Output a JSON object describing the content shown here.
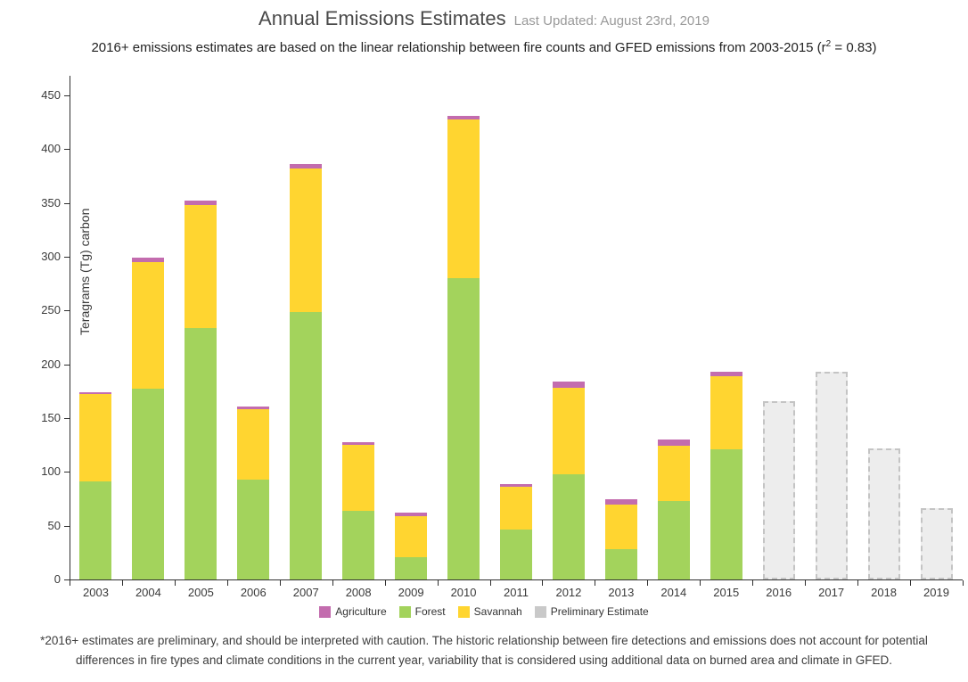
{
  "header": {
    "title": "Annual Emissions Estimates",
    "last_updated": "Last Updated: August 23rd, 2019",
    "subtitle_pre": "2016+ emissions estimates are based on the linear relationship between fire counts and GFED emissions from 2003-2015 (r",
    "subtitle_sup": "2",
    "subtitle_post": " = 0.83)"
  },
  "chart_data": {
    "type": "bar",
    "stacked": true,
    "title": "Annual Emissions Estimates",
    "ylabel": "Teragrams (Tg) carbon",
    "xlabel": "",
    "ylim": [
      0,
      450
    ],
    "ytick_step": 50,
    "grid": false,
    "legend_position": "bottom",
    "categories": [
      "2003",
      "2004",
      "2005",
      "2006",
      "2007",
      "2008",
      "2009",
      "2010",
      "2011",
      "2012",
      "2013",
      "2014",
      "2015",
      "2016",
      "2017",
      "2018",
      "2019"
    ],
    "series": [
      {
        "name": "Forest",
        "color": "#a3d35c",
        "values": [
          91,
          177,
          234,
          93,
          249,
          64,
          21,
          280,
          46,
          98,
          28,
          73,
          121,
          null,
          null,
          null,
          null
        ]
      },
      {
        "name": "Savannah",
        "color": "#ffd530",
        "values": [
          81,
          118,
          114,
          65,
          133,
          61,
          38,
          148,
          40,
          80,
          42,
          51,
          68,
          null,
          null,
          null,
          null
        ]
      },
      {
        "name": "Agriculture",
        "color": "#c36cae",
        "values": [
          2,
          4,
          4,
          3,
          4,
          3,
          3,
          3,
          3,
          6,
          5,
          6,
          4,
          null,
          null,
          null,
          null
        ]
      }
    ],
    "preliminary": {
      "name": "Preliminary Estimate",
      "fill": "#ededed",
      "border": "#c4c4c4",
      "values": [
        null,
        null,
        null,
        null,
        null,
        null,
        null,
        null,
        null,
        null,
        null,
        null,
        null,
        166,
        193,
        122,
        66
      ]
    },
    "totals": [
      174,
      299,
      352,
      161,
      386,
      128,
      62,
      431,
      89,
      184,
      75,
      130,
      193,
      166,
      193,
      122,
      66
    ],
    "legend": [
      {
        "label": "Agriculture",
        "color": "#c36cae"
      },
      {
        "label": "Forest",
        "color": "#a3d35c"
      },
      {
        "label": "Savannah",
        "color": "#ffd530"
      },
      {
        "label": "Preliminary Estimate",
        "color": "#c9c9c9"
      }
    ]
  },
  "footnote": {
    "text": "*2016+ estimates are preliminary, and should be interpreted with caution. The historic relationship between fire detections and emissions does not account for potential differences in fire types and climate conditions in the current year, variability that is considered using additional data on burned area and climate in GFED."
  }
}
